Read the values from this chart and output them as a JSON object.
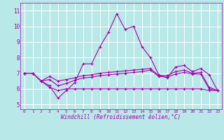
{
  "xlabel": "Windchill (Refroidissement éolien,°C)",
  "x_ticks": [
    0,
    1,
    2,
    3,
    4,
    5,
    6,
    7,
    8,
    9,
    10,
    11,
    12,
    13,
    14,
    15,
    16,
    17,
    18,
    19,
    20,
    21,
    22,
    23
  ],
  "ylim": [
    4.7,
    11.5
  ],
  "xlim": [
    -0.5,
    23.5
  ],
  "yticks": [
    5,
    6,
    7,
    8,
    9,
    10,
    11
  ],
  "line_color": "#aa00aa",
  "bg_color": "#b8e8e8",
  "grid_color": "#ffffff",
  "lines": [
    [
      7.0,
      7.0,
      6.5,
      6.2,
      5.4,
      5.9,
      6.4,
      7.6,
      7.6,
      8.7,
      9.6,
      10.8,
      9.8,
      10.0,
      8.7,
      8.0,
      6.9,
      6.7,
      7.4,
      7.5,
      7.1,
      7.3,
      6.9,
      5.9
    ],
    [
      7.0,
      7.0,
      6.5,
      6.8,
      6.5,
      6.6,
      6.7,
      6.85,
      6.9,
      7.0,
      7.05,
      7.1,
      7.15,
      7.2,
      7.25,
      7.3,
      6.85,
      6.85,
      7.1,
      7.2,
      7.0,
      7.05,
      6.1,
      5.9
    ],
    [
      7.0,
      7.0,
      6.5,
      6.6,
      6.2,
      6.35,
      6.55,
      6.7,
      6.75,
      6.85,
      6.9,
      6.95,
      7.0,
      7.05,
      7.1,
      7.2,
      6.8,
      6.75,
      6.95,
      7.05,
      6.95,
      6.95,
      6.0,
      5.9
    ],
    [
      7.0,
      7.0,
      6.5,
      6.1,
      5.9,
      6.0,
      6.0,
      6.0,
      6.0,
      6.0,
      6.0,
      6.0,
      6.0,
      6.0,
      6.0,
      6.0,
      6.0,
      6.0,
      6.0,
      6.0,
      6.0,
      6.0,
      5.9,
      5.9
    ]
  ]
}
